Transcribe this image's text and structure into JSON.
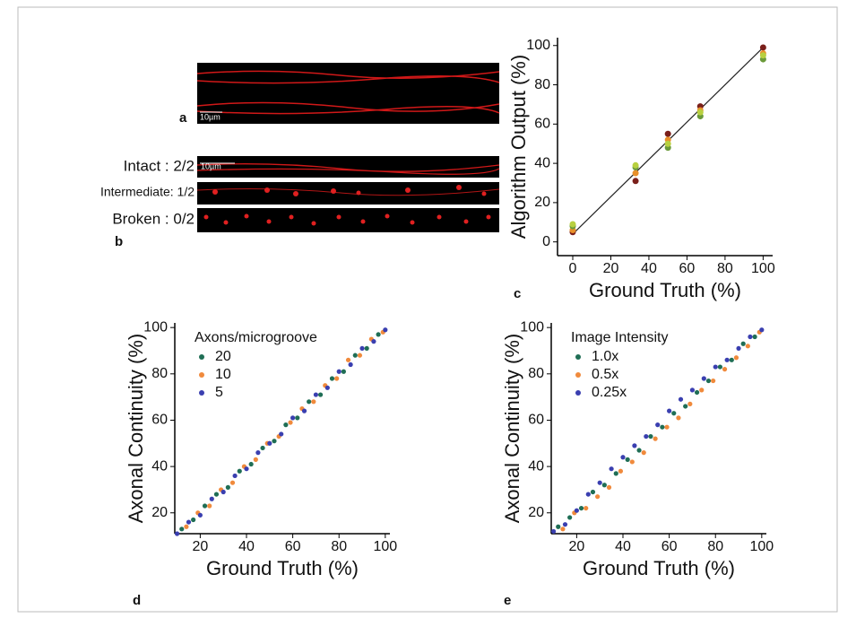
{
  "panel_a": {
    "label": "a",
    "scale_bar": "10µm"
  },
  "panel_b": {
    "label": "b",
    "scale_bar": "10µm",
    "rows": [
      "Intact : 2/2",
      "Intermediate: 1/2",
      "Broken : 0/2"
    ]
  },
  "chart_data": [
    {
      "type": "scatter",
      "label": "c",
      "xlabel": "Ground Truth (%)",
      "ylabel": "Algorithm Output (%)",
      "xlim": [
        -8,
        105
      ],
      "ylim": [
        -7,
        104
      ],
      "xticks": [
        0,
        20,
        40,
        60,
        80,
        100
      ],
      "yticks": [
        0,
        20,
        40,
        60,
        80,
        100
      ],
      "fit_line": {
        "x": [
          0,
          100
        ],
        "values": [
          4,
          99
        ]
      },
      "series": [
        {
          "color": "#7a1f1a",
          "x": [
            0,
            33,
            50,
            67,
            100
          ],
          "values": [
            5,
            31,
            55,
            69,
            99
          ]
        },
        {
          "color": "#e8902a",
          "x": [
            0,
            33,
            50,
            67,
            100
          ],
          "values": [
            6,
            35,
            52,
            67,
            96
          ]
        },
        {
          "color": "#6b9a3a",
          "x": [
            0,
            33,
            50,
            67,
            100
          ],
          "values": [
            8,
            38,
            48,
            64,
            93
          ]
        },
        {
          "color": "#b8d040",
          "x": [
            0,
            33,
            50,
            67,
            100
          ],
          "values": [
            9,
            39,
            50,
            66,
            95
          ]
        }
      ]
    },
    {
      "type": "scatter",
      "label": "d",
      "xlabel": "Ground Truth (%)",
      "ylabel": "Axonal Continuity (%)",
      "legend_title": "Axons/microgroove",
      "xlim": [
        9,
        102
      ],
      "ylim": [
        11,
        102
      ],
      "xticks": [
        20,
        40,
        60,
        80,
        100
      ],
      "yticks": [
        20,
        40,
        60,
        80,
        100
      ],
      "series": [
        {
          "name": "20",
          "color": "#1f6e55",
          "x": [
            12,
            17,
            22,
            27,
            32,
            37,
            42,
            47,
            52,
            57,
            62,
            67,
            72,
            77,
            82,
            87,
            92,
            97
          ],
          "values": [
            13,
            17,
            23,
            28,
            31,
            38,
            41,
            48,
            51,
            58,
            61,
            68,
            71,
            78,
            81,
            88,
            91,
            97
          ]
        },
        {
          "name": "10",
          "color": "#f08a3c",
          "x": [
            14,
            19,
            24,
            29,
            34,
            39,
            44,
            49,
            54,
            59,
            64,
            69,
            74,
            79,
            84,
            89,
            94,
            99
          ],
          "values": [
            14,
            20,
            23,
            30,
            33,
            40,
            43,
            50,
            53,
            59,
            65,
            68,
            75,
            78,
            86,
            88,
            95,
            98
          ]
        },
        {
          "name": "5",
          "color": "#3a3fb0",
          "x": [
            10,
            15,
            20,
            25,
            30,
            35,
            40,
            45,
            50,
            55,
            60,
            65,
            70,
            75,
            80,
            85,
            90,
            95,
            100
          ],
          "values": [
            11,
            16,
            19,
            26,
            29,
            36,
            39,
            46,
            50,
            54,
            61,
            64,
            71,
            74,
            81,
            84,
            91,
            94,
            99
          ]
        }
      ]
    },
    {
      "type": "scatter",
      "label": "e",
      "xlabel": "Ground Truth (%)",
      "ylabel": "Axonal Continuity (%)",
      "legend_title": "Image Intensity",
      "xlim": [
        9,
        102
      ],
      "ylim": [
        11,
        102
      ],
      "xticks": [
        20,
        40,
        60,
        80,
        100
      ],
      "yticks": [
        20,
        40,
        60,
        80,
        100
      ],
      "series": [
        {
          "name": "1.0x",
          "color": "#1f6e55",
          "x": [
            12,
            17,
            22,
            27,
            32,
            37,
            42,
            47,
            52,
            57,
            62,
            67,
            72,
            77,
            82,
            87,
            92,
            97
          ],
          "values": [
            14,
            18,
            22,
            29,
            32,
            37,
            43,
            47,
            53,
            57,
            63,
            66,
            72,
            77,
            83,
            86,
            93,
            96
          ]
        },
        {
          "name": "0.5x",
          "color": "#f08a3c",
          "x": [
            14,
            19,
            24,
            29,
            34,
            39,
            44,
            49,
            54,
            59,
            64,
            69,
            74,
            79,
            84,
            89,
            94,
            99
          ],
          "values": [
            13,
            20,
            22,
            27,
            31,
            38,
            42,
            46,
            52,
            57,
            61,
            67,
            73,
            77,
            82,
            87,
            92,
            98
          ]
        },
        {
          "name": "0.25x",
          "color": "#3a3fb0",
          "x": [
            10,
            15,
            20,
            25,
            30,
            35,
            40,
            45,
            50,
            55,
            60,
            65,
            70,
            75,
            80,
            85,
            90,
            95,
            100
          ],
          "values": [
            12,
            15,
            21,
            28,
            33,
            39,
            44,
            49,
            53,
            58,
            64,
            69,
            73,
            78,
            83,
            86,
            91,
            96,
            99
          ]
        }
      ]
    }
  ]
}
